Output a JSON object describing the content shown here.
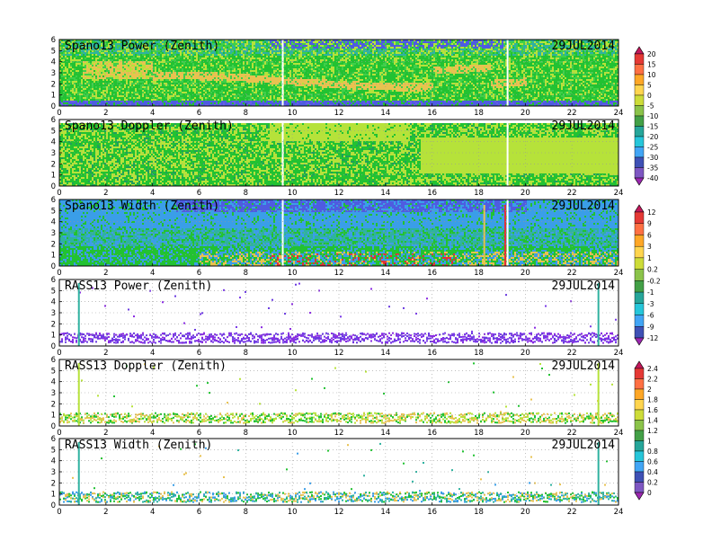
{
  "chart_data": [
    {
      "type": "heatmap",
      "title": "Spano13 Power (Zenith)",
      "date": "29JUL2014",
      "x_ticks": [
        "0",
        "2",
        "4",
        "6",
        "8",
        "10",
        "12",
        "14",
        "16",
        "18",
        "20",
        "22",
        "24"
      ],
      "y_ticks": [
        "0",
        "1",
        "2",
        "3",
        "4",
        "5",
        "6"
      ],
      "xlim": [
        0,
        24
      ],
      "ylim": [
        0,
        6
      ],
      "grid": true,
      "dominant_colors": [
        "#22c232",
        "#b6e23a",
        "#e8c250",
        "#2fb2a0",
        "#4e5ce0"
      ],
      "colorbar": "power_scale"
    },
    {
      "type": "heatmap",
      "title": "Spano13 Doppler (Zenith)",
      "date": "29JUL2014",
      "x_ticks": [
        "0",
        "2",
        "4",
        "6",
        "8",
        "10",
        "12",
        "14",
        "16",
        "18",
        "20",
        "22",
        "24"
      ],
      "y_ticks": [
        "0",
        "1",
        "2",
        "3",
        "4",
        "5",
        "6"
      ],
      "xlim": [
        0,
        24
      ],
      "ylim": [
        0,
        6
      ],
      "grid": true,
      "dominant_colors": [
        "#22c232",
        "#b6e23a",
        "#1f9e5c"
      ],
      "colorbar": "power_scale"
    },
    {
      "type": "heatmap",
      "title": "Spano13 Width (Zenith)",
      "date": "29JUL2014",
      "x_ticks": [
        "0",
        "2",
        "4",
        "6",
        "8",
        "10",
        "12",
        "14",
        "16",
        "18",
        "20",
        "22",
        "24"
      ],
      "y_ticks": [
        "0",
        "1",
        "2",
        "3",
        "4",
        "5",
        "6"
      ],
      "xlim": [
        0,
        24
      ],
      "ylim": [
        0,
        6
      ],
      "grid": true,
      "dominant_colors": [
        "#22c232",
        "#2fb2a0",
        "#3a9ee8",
        "#4e5ce0",
        "#e8c250",
        "#e0303a"
      ],
      "colorbar": "width_scale"
    },
    {
      "type": "heatmap",
      "title": "RASS13 Power (Zenith)",
      "date": "29JUL2014",
      "x_ticks": [
        "0",
        "2",
        "4",
        "6",
        "8",
        "10",
        "12",
        "14",
        "16",
        "18",
        "20",
        "22",
        "24"
      ],
      "y_ticks": [
        "0",
        "1",
        "2",
        "3",
        "4",
        "5",
        "6"
      ],
      "xlim": [
        0,
        24
      ],
      "ylim": [
        0,
        6
      ],
      "grid": true,
      "dominant_colors": [
        "#8a2be2",
        "#6a3ae0",
        "#4e5ce0"
      ],
      "colorbar": "width_scale"
    },
    {
      "type": "heatmap",
      "title": "RASS13 Doppler (Zenith)",
      "date": "29JUL2014",
      "x_ticks": [
        "0",
        "2",
        "4",
        "6",
        "8",
        "10",
        "12",
        "14",
        "16",
        "18",
        "20",
        "22",
        "24"
      ],
      "y_ticks": [
        "0",
        "1",
        "2",
        "3",
        "4",
        "5",
        "6"
      ],
      "xlim": [
        0,
        24
      ],
      "ylim": [
        0,
        6
      ],
      "grid": true,
      "dominant_colors": [
        "#22c232",
        "#b6e23a",
        "#e8c250"
      ],
      "colorbar": "rass_scale"
    },
    {
      "type": "heatmap",
      "title": "RASS13 Width (Zenith)",
      "date": "29JUL2014",
      "x_ticks": [
        "0",
        "2",
        "4",
        "6",
        "8",
        "10",
        "12",
        "14",
        "16",
        "18",
        "20",
        "22",
        "24"
      ],
      "y_ticks": [
        "0",
        "1",
        "2",
        "3",
        "4",
        "5",
        "6"
      ],
      "xlim": [
        0,
        24
      ],
      "ylim": [
        0,
        6
      ],
      "grid": true,
      "dominant_colors": [
        "#22c232",
        "#2fb2a0",
        "#3a9ee8",
        "#e8c250"
      ],
      "colorbar": "rass_scale"
    }
  ],
  "colorbars": {
    "power_scale": {
      "labels": [
        "20",
        "15",
        "10",
        "5",
        "0",
        "-5",
        "-10",
        "-15",
        "-20",
        "-25",
        "-30",
        "-35",
        "-40"
      ],
      "colors": [
        "#c2185b",
        "#e53935",
        "#ff7043",
        "#ffa726",
        "#ffd54f",
        "#cddc39",
        "#8bc34a",
        "#43a047",
        "#26a69a",
        "#26c6da",
        "#42a5f5",
        "#3f51b5",
        "#7e57c2",
        "#9c27b0"
      ]
    },
    "width_scale": {
      "labels": [
        "12",
        "9",
        "6",
        "3",
        "1",
        "0.2",
        "-0.2",
        "-1",
        "-3",
        "-6",
        "-9",
        "-12"
      ],
      "colors": [
        "#c2185b",
        "#e53935",
        "#ff7043",
        "#ffa726",
        "#ffd54f",
        "#cddc39",
        "#8bc34a",
        "#43a047",
        "#26a69a",
        "#26c6da",
        "#42a5f5",
        "#3f51b5",
        "#9c27b0"
      ]
    },
    "rass_scale": {
      "labels": [
        "2.4",
        "2.2",
        "2",
        "1.8",
        "1.6",
        "1.4",
        "1.2",
        "1",
        "0.8",
        "0.6",
        "0.4",
        "0.2",
        "0"
      ],
      "colors": [
        "#c2185b",
        "#e53935",
        "#ff7043",
        "#ffa726",
        "#ffd54f",
        "#cddc39",
        "#8bc34a",
        "#43a047",
        "#26a69a",
        "#26c6da",
        "#42a5f5",
        "#3f51b5",
        "#7e57c2",
        "#9c27b0"
      ]
    }
  }
}
